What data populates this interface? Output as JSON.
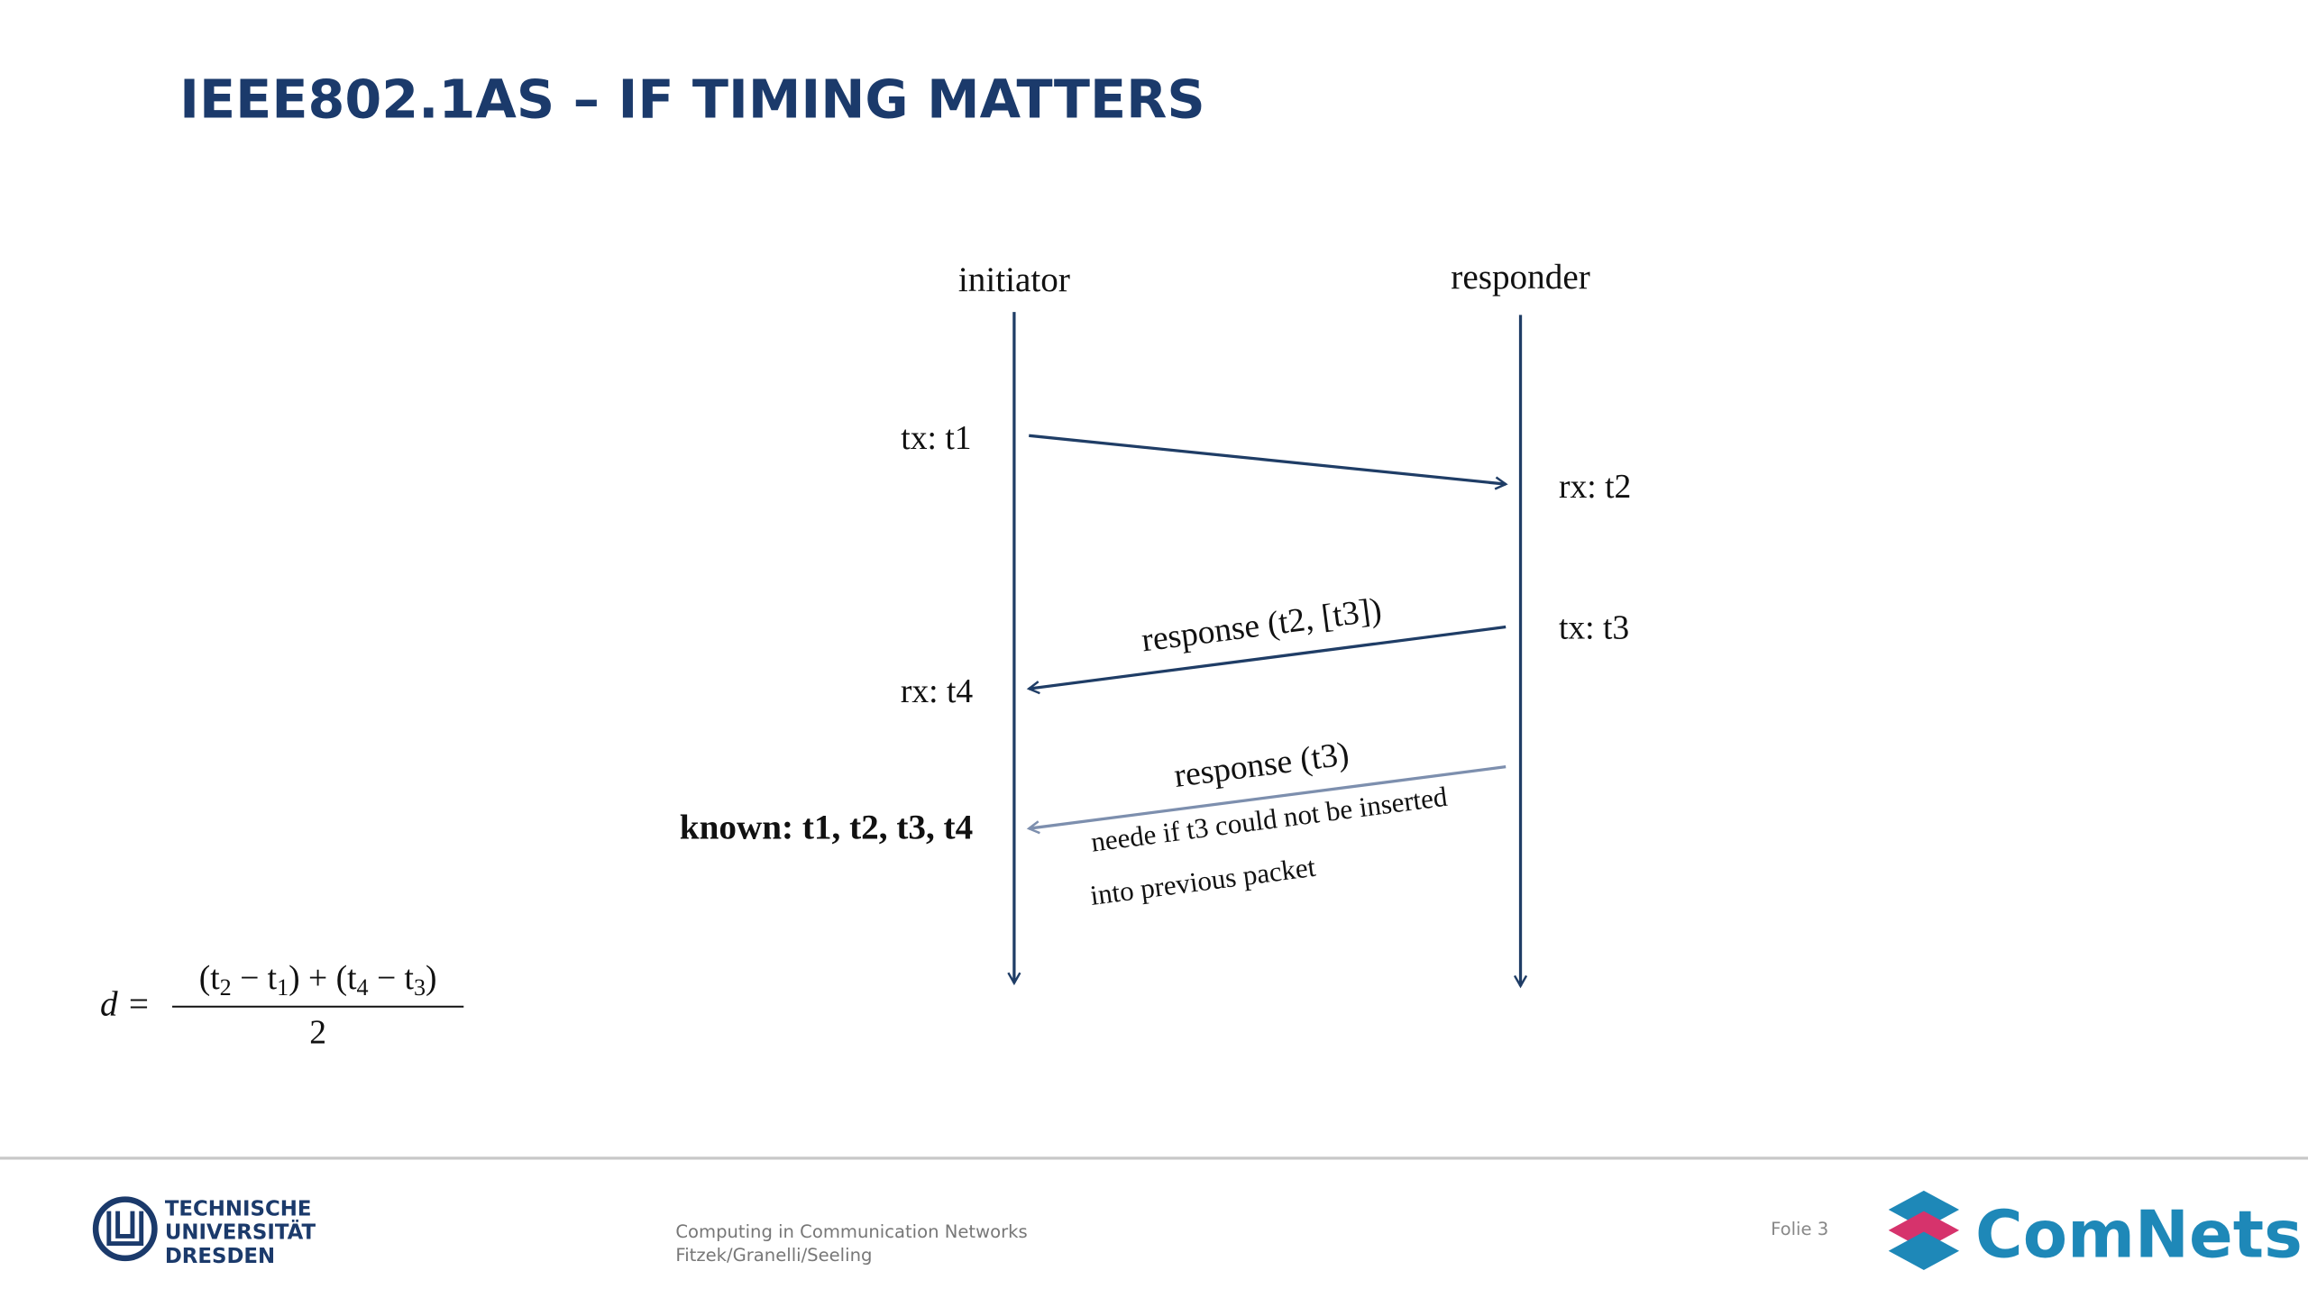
{
  "header": {
    "title": "IEEE802.1AS – IF TIMING MATTERS"
  },
  "diagram": {
    "initiator": "initiator",
    "responder": "responder",
    "messages": [
      {
        "send_label": "tx: t1",
        "recv_label": "rx: t2"
      },
      {
        "send_label": "tx: t3",
        "recv_label": "rx: t4",
        "label": "response (t2, [t3])"
      },
      {
        "label": "response (t3)",
        "note_line1": "neede if t3 could not be inserted",
        "note_line2": "into previous packet"
      }
    ],
    "known": "known: t1, t2, t3, t4"
  },
  "formula": {
    "lhs": "d =",
    "numerator": [
      "(t",
      "2",
      " − t",
      "1",
      ") + (t",
      "4",
      " − t",
      "3",
      ")"
    ],
    "denominator": "2"
  },
  "footer": {
    "university": [
      "TECHNISCHE",
      "UNIVERSITÄT",
      "DRESDEN"
    ],
    "course": "Computing in Communication Networks",
    "authors": "Fitzek/Granelli/Seeling",
    "slide": "Folie 3",
    "brand": "ComNets"
  }
}
